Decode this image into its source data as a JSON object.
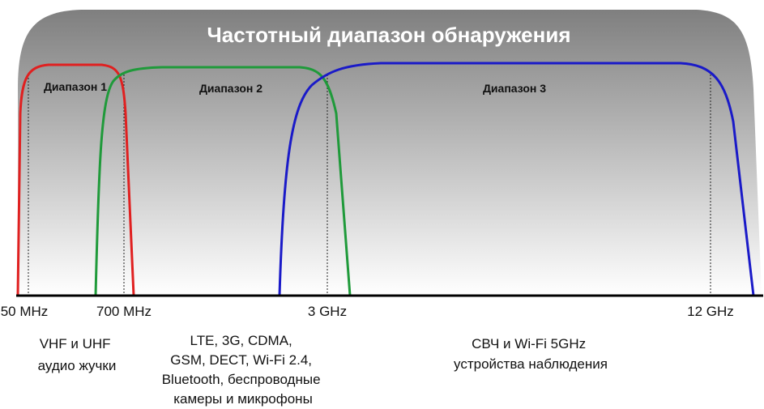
{
  "title": "Частотный диапазон обнаружения",
  "ranges": [
    "Диапазон 1",
    "Диапазон 2",
    "Диапазон 3"
  ],
  "frequencies": [
    "50 MHz",
    "700 MHz",
    "3 GHz",
    "12 GHz"
  ],
  "descriptions": [
    [
      "VHF и UHF",
      "аудио жучки"
    ],
    [
      "LTE, 3G, CDMA,",
      "GSM, DECT, Wi-Fi 2.4,",
      "Bluetooth, беспроводные",
      "камеры и микрофоны"
    ],
    [
      "СВЧ и Wi-Fi 5GHz",
      "устройства наблюдения"
    ]
  ]
}
